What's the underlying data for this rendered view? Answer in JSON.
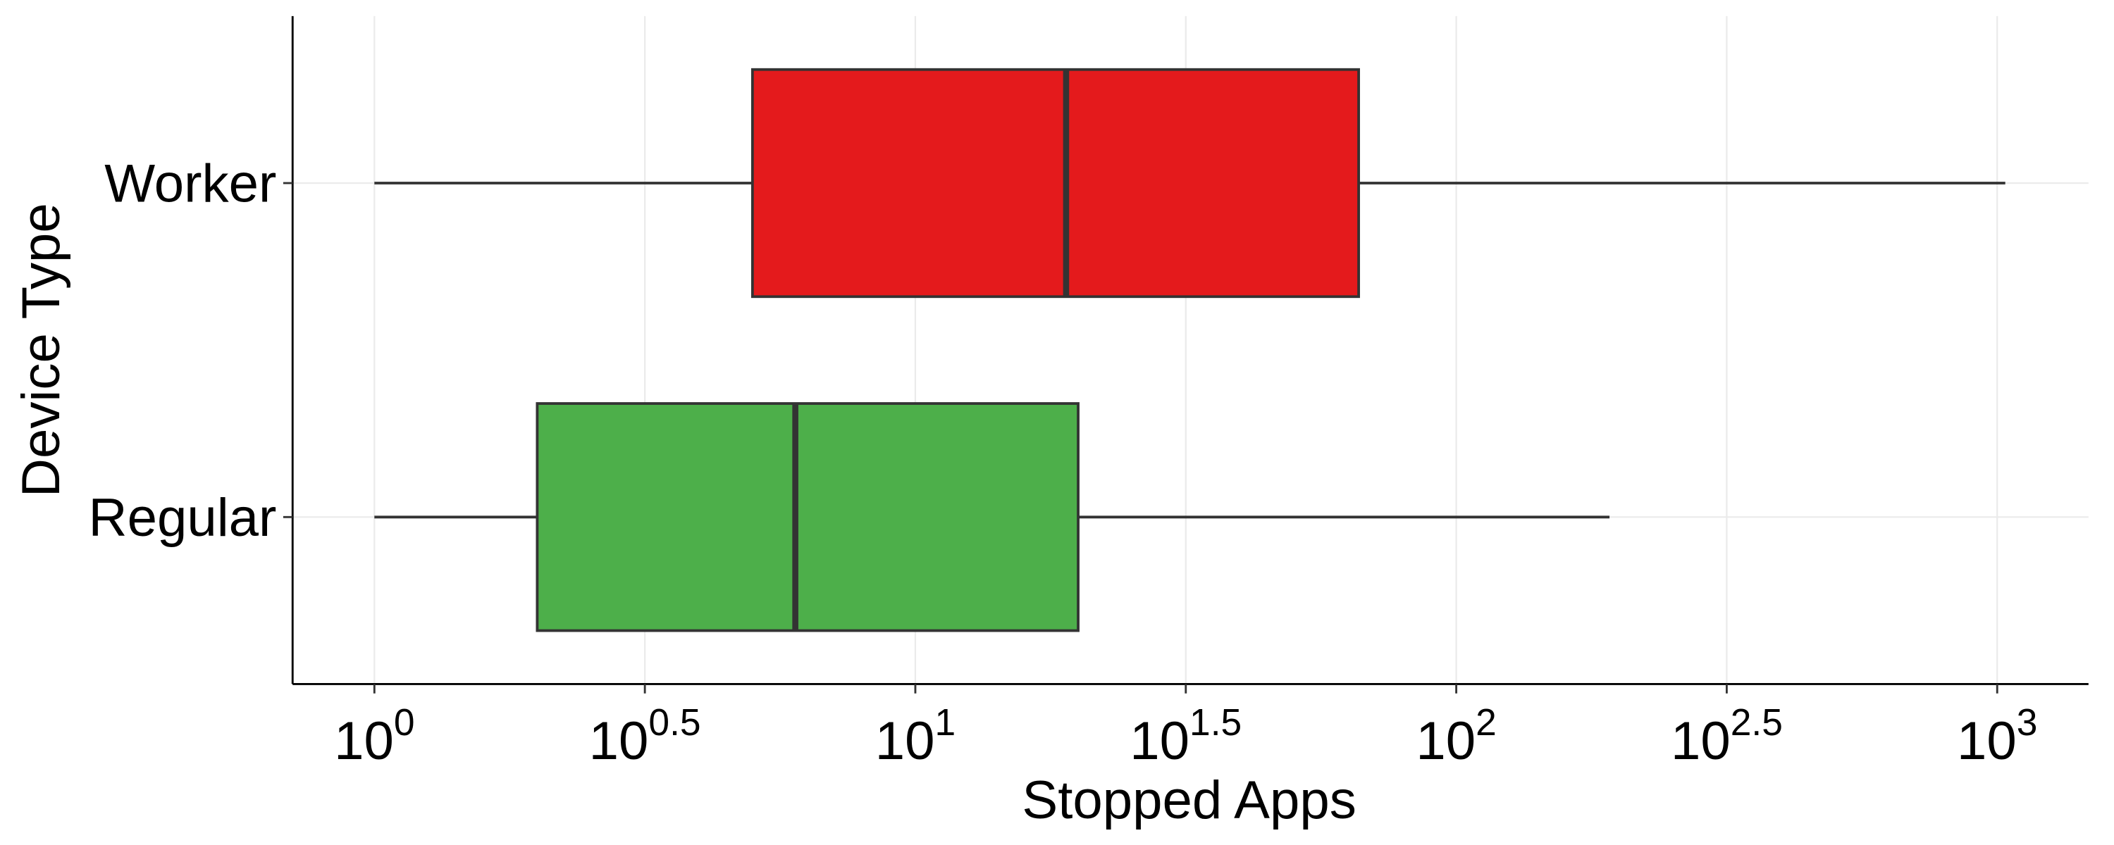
{
  "chart_data": {
    "type": "box",
    "x_label": "Stopped Apps",
    "y_label": "Device Type",
    "categories": [
      "Worker",
      "Regular"
    ],
    "boxes": [
      {
        "color": "#e41a1c",
        "whislo": 1,
        "q1": 5,
        "med": 19,
        "q3": 66,
        "whishi": 1035
      },
      {
        "color": "#4daf4a",
        "whislo": 1,
        "q1": 2,
        "med": 6,
        "q3": 20,
        "whishi": 192
      }
    ],
    "xscale": "log",
    "xlim": [
      0.706,
      1475
    ],
    "xticks": [
      {
        "value": 1,
        "label": "10",
        "exponent": "0"
      },
      {
        "value": 3.16227766,
        "label": "10",
        "exponent": "0.5"
      },
      {
        "value": 10,
        "label": "10",
        "exponent": "1"
      },
      {
        "value": 31.6227766,
        "label": "10",
        "exponent": "1.5"
      },
      {
        "value": 100,
        "label": "10",
        "exponent": "2"
      },
      {
        "value": 316.227766,
        "label": "10",
        "exponent": "2.5"
      },
      {
        "value": 1000,
        "label": "10",
        "exponent": "3"
      }
    ],
    "grid": true
  }
}
